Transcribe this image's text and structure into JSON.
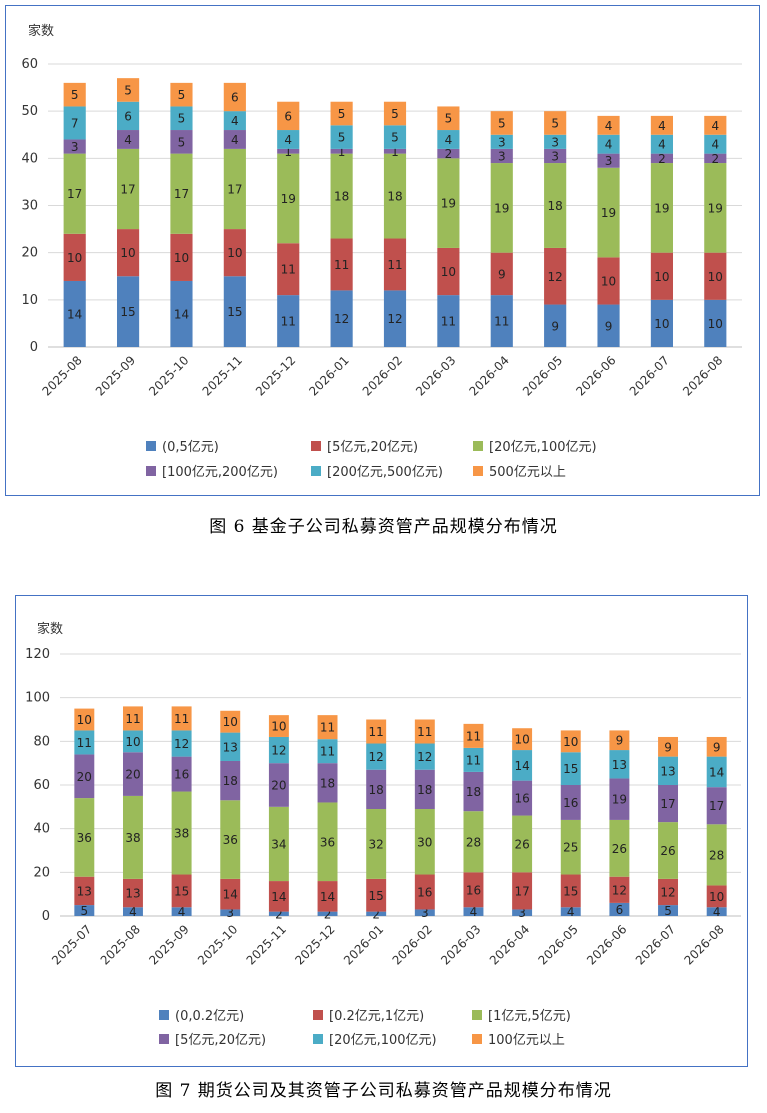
{
  "captions": {
    "fig6": "图 6   基金子公司私募资管产品规模分布情况",
    "fig7": "图 7   期货公司及其资管子公司私募资管产品规模分布情况"
  },
  "chart_data": [
    {
      "type": "bar",
      "stacked": true,
      "unit_label": "家数",
      "ylim": [
        0,
        60
      ],
      "yticks": [
        0,
        10,
        20,
        30,
        40,
        50,
        60
      ],
      "grid": true,
      "legend_position": "bottom",
      "categories": [
        "2025-08",
        "2025-09",
        "2025-10",
        "2025-11",
        "2025-12",
        "2026-01",
        "2026-02",
        "2026-03",
        "2026-04",
        "2026-05",
        "2026-06",
        "2026-07",
        "2026-08"
      ],
      "series": [
        {
          "name": "(0,5亿元)",
          "color": "#4f81bd",
          "values": [
            14,
            15,
            14,
            15,
            11,
            12,
            12,
            11,
            11,
            9,
            9,
            10,
            10
          ]
        },
        {
          "name": "[5亿元,20亿元)",
          "color": "#c0504d",
          "values": [
            10,
            10,
            10,
            10,
            11,
            11,
            11,
            10,
            9,
            12,
            10,
            10,
            10
          ]
        },
        {
          "name": "[20亿元,100亿元)",
          "color": "#9bbb59",
          "values": [
            17,
            17,
            17,
            17,
            19,
            18,
            18,
            19,
            19,
            18,
            19,
            19,
            19
          ]
        },
        {
          "name": "[100亿元,200亿元)",
          "color": "#8064a2",
          "values": [
            3,
            4,
            5,
            4,
            1,
            1,
            1,
            2,
            3,
            3,
            3,
            2,
            2
          ]
        },
        {
          "name": "[200亿元,500亿元)",
          "color": "#4bacc6",
          "values": [
            7,
            6,
            5,
            4,
            4,
            5,
            5,
            4,
            3,
            3,
            4,
            4,
            4
          ]
        },
        {
          "name": "500亿元以上",
          "color": "#f79646",
          "values": [
            5,
            5,
            5,
            6,
            6,
            5,
            5,
            5,
            5,
            5,
            4,
            4,
            4
          ]
        }
      ]
    },
    {
      "type": "bar",
      "stacked": true,
      "unit_label": "家数",
      "ylim": [
        0,
        120
      ],
      "yticks": [
        0,
        20,
        40,
        60,
        80,
        100,
        120
      ],
      "grid": true,
      "legend_position": "bottom",
      "categories": [
        "2025-07",
        "2025-08",
        "2025-09",
        "2025-10",
        "2025-11",
        "2025-12",
        "2026-01",
        "2026-02",
        "2026-03",
        "2026-04",
        "2026-05",
        "2026-06",
        "2026-07",
        "2026-08"
      ],
      "series": [
        {
          "name": "(0,0.2亿元)",
          "color": "#4f81bd",
          "values": [
            5,
            4,
            4,
            3,
            2,
            2,
            2,
            3,
            4,
            3,
            4,
            6,
            5,
            4
          ]
        },
        {
          "name": "[0.2亿元,1亿元)",
          "color": "#c0504d",
          "values": [
            13,
            13,
            15,
            14,
            14,
            14,
            15,
            16,
            16,
            17,
            15,
            12,
            12,
            10
          ]
        },
        {
          "name": "[1亿元,5亿元)",
          "color": "#9bbb59",
          "values": [
            36,
            38,
            38,
            36,
            34,
            36,
            32,
            30,
            28,
            26,
            25,
            26,
            26,
            28
          ]
        },
        {
          "name": "[5亿元,20亿元)",
          "color": "#8064a2",
          "values": [
            20,
            20,
            16,
            18,
            20,
            18,
            18,
            18,
            18,
            16,
            16,
            19,
            17,
            17
          ]
        },
        {
          "name": "[20亿元,100亿元)",
          "color": "#4bacc6",
          "values": [
            11,
            10,
            12,
            13,
            12,
            11,
            12,
            12,
            11,
            14,
            15,
            13,
            13,
            14
          ]
        },
        {
          "name": "100亿元以上",
          "color": "#f79646",
          "values": [
            10,
            11,
            11,
            10,
            10,
            11,
            11,
            11,
            11,
            10,
            10,
            9,
            9,
            9
          ]
        }
      ]
    }
  ]
}
